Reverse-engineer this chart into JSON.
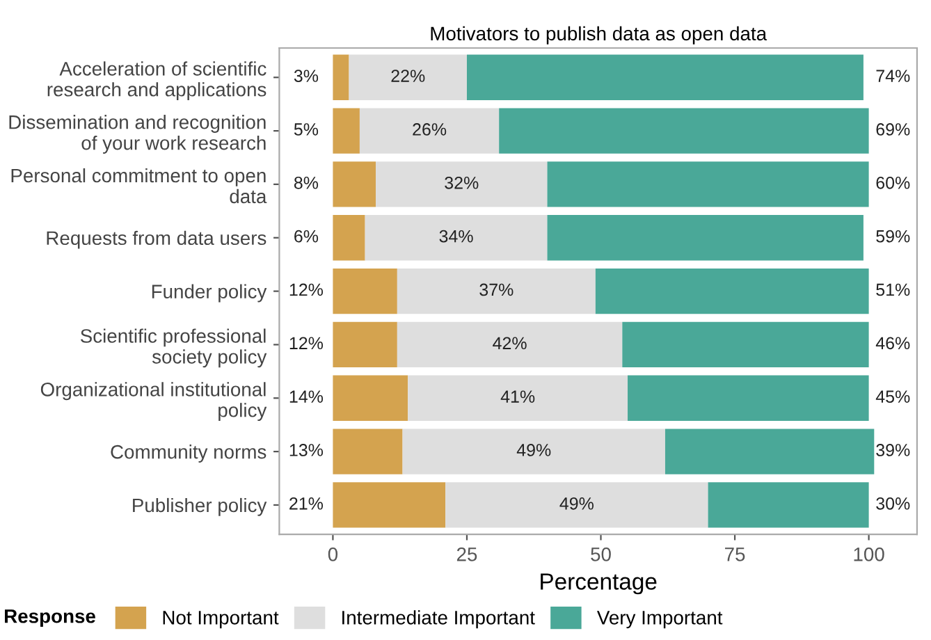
{
  "chart_data": {
    "type": "bar",
    "orientation": "horizontal",
    "stacked": true,
    "title": "Motivators to publish data as open data",
    "xlabel": "Percentage",
    "legend_title": "Response",
    "legend": "bottom",
    "grid": false,
    "categories": [
      "Acceleration of scientific\nresearch and applications",
      "Dissemination and recognition\nof your work research",
      "Personal commitment to open\ndata",
      "Requests from data users",
      "Funder policy",
      "Scientific professional\nsociety policy",
      "Organizational institutional\npolicy",
      "Community norms",
      "Publisher policy"
    ],
    "xlim": [
      -10,
      109
    ],
    "xticks": [
      0,
      25,
      50,
      75,
      100
    ],
    "series": [
      {
        "name": "Not Important",
        "color": "#d4a34f",
        "values": [
          3,
          5,
          8,
          6,
          12,
          12,
          14,
          13,
          21
        ],
        "value_labels": [
          "3%",
          "5%",
          "8%",
          "6%",
          "12%",
          "12%",
          "14%",
          "13%",
          "21%"
        ]
      },
      {
        "name": "Intermediate Important",
        "color": "#dedede",
        "values": [
          22,
          26,
          32,
          34,
          37,
          42,
          41,
          49,
          49
        ],
        "value_labels": [
          "22%",
          "26%",
          "32%",
          "34%",
          "37%",
          "42%",
          "41%",
          "49%",
          "49%"
        ]
      },
      {
        "name": "Very Important",
        "color": "#4aa898",
        "values": [
          74,
          69,
          60,
          59,
          51,
          46,
          45,
          39,
          30
        ],
        "value_labels": [
          "74%",
          "69%",
          "60%",
          "59%",
          "51%",
          "46%",
          "45%",
          "39%",
          "30%"
        ]
      }
    ]
  }
}
